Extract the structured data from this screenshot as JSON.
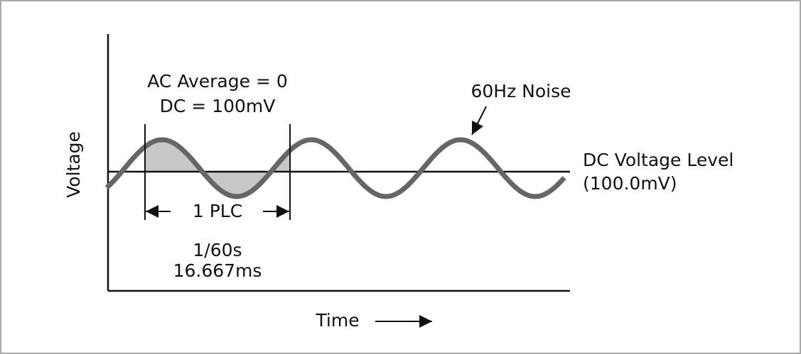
{
  "axes": {
    "y_label": "Voltage",
    "x_label": "Time"
  },
  "annotations": {
    "ac_average": "AC Average = 0",
    "dc": "DC = 100mV",
    "noise": "60Hz Noise",
    "dc_level": "DC Voltage Level",
    "dc_level_value": "(100.0mV)",
    "plc": "1 PLC",
    "period_fraction": "1/60s",
    "period_ms": "16.667ms"
  }
}
